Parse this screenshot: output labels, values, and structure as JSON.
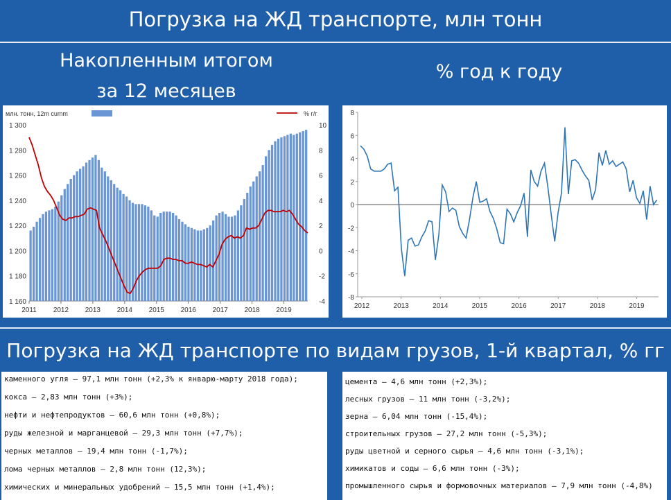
{
  "header": {
    "title": "Погрузка на ЖД транспорте, млн тонн",
    "left_subtitle_line1": "Накопленным итогом",
    "left_subtitle_line2": "за 12 месяцев",
    "right_subtitle": "% год к году",
    "bottom_title": "Погрузка на ЖД транспорте по видам грузов, 1-й квартал, % гг"
  },
  "chart_data": [
    {
      "type": "bar+line",
      "legend_bar": "млн. тонн, 12m cumm",
      "legend_line": "% г/г",
      "legend_placement": "top",
      "colors": {
        "bar": "#6a96d6",
        "line": "#c00000"
      },
      "x_tick_labels": [
        "2011",
        "2012",
        "2013",
        "2014",
        "2015",
        "2016",
        "2017",
        "2018",
        "2019"
      ],
      "y_left_ticks": [
        "1 160",
        "1 180",
        "1 200",
        "1 220",
        "1 240",
        "1 260",
        "1 280",
        "1 300"
      ],
      "y_left_range": [
        1160,
        1300
      ],
      "y_right_ticks": [
        "-4",
        "-2",
        "0",
        "2",
        "4",
        "6",
        "8",
        "10"
      ],
      "y_right_range": [
        -4,
        10
      ],
      "bar_values": [
        1216,
        1219,
        1223,
        1226,
        1229,
        1231,
        1232,
        1233,
        1235,
        1239,
        1244,
        1249,
        1253,
        1257,
        1260,
        1263,
        1265,
        1267,
        1270,
        1272,
        1274,
        1276,
        1272,
        1266,
        1263,
        1259,
        1256,
        1253,
        1250,
        1248,
        1245,
        1243,
        1240,
        1238,
        1237,
        1237,
        1237,
        1236,
        1235,
        1232,
        1228,
        1227,
        1230,
        1231,
        1231,
        1231,
        1230,
        1228,
        1225,
        1223,
        1221,
        1219,
        1218,
        1217,
        1216,
        1216,
        1217,
        1218,
        1220,
        1224,
        1228,
        1230,
        1231,
        1229,
        1227,
        1227,
        1228,
        1232,
        1236,
        1241,
        1246,
        1251,
        1255,
        1259,
        1263,
        1268,
        1275,
        1280,
        1284,
        1287,
        1289,
        1290,
        1291,
        1292,
        1293,
        1292,
        1293,
        1294,
        1295,
        1296
      ],
      "line_values": [
        9,
        8.4,
        7.6,
        6.8,
        5.8,
        5.1,
        4.7,
        4.4,
        4,
        3.4,
        2.8,
        2.5,
        2.4,
        2.6,
        2.6,
        2.7,
        2.7,
        2.8,
        2.9,
        3.3,
        3.4,
        3.3,
        3.2,
        1.8,
        1.3,
        0.8,
        0.2,
        -0.4,
        -1,
        -1.6,
        -2.2,
        -2.8,
        -3.3,
        -3.4,
        -3,
        -2.4,
        -2,
        -1.7,
        -1.5,
        -1.4,
        -1.4,
        -1.4,
        -1.4,
        -1.2,
        -0.7,
        -0.6,
        -0.6,
        -0.7,
        -0.7,
        -0.8,
        -0.8,
        -1,
        -1,
        -0.9,
        -1,
        -1.1,
        -1.1,
        -1.2,
        -1.3,
        -1.1,
        -1.3,
        -0.8,
        -0.3,
        0.5,
        0.9,
        1.1,
        1.2,
        1,
        1.1,
        1,
        1.2,
        1.8,
        1.7,
        1.8,
        1.8,
        2,
        2.5,
        3,
        3.2,
        3.2,
        3.1,
        3.1,
        3.1,
        3.2,
        3.1,
        3.2,
        2.9,
        2.5,
        2.1,
        1.9,
        1.6,
        1.4
      ]
    },
    {
      "type": "line",
      "colors": {
        "line": "#2e75b6"
      },
      "x_tick_labels": [
        "2012",
        "2013",
        "2014",
        "2015",
        "2016",
        "2017",
        "2018",
        "2019"
      ],
      "y_ticks": [
        "8",
        "6",
        "4",
        "2",
        "0",
        "-2",
        "-4",
        "-6",
        "-8"
      ],
      "y_range": [
        -8,
        8
      ],
      "values": [
        5.1,
        4.8,
        4.2,
        3.1,
        2.9,
        2.9,
        2.9,
        3.1,
        3.5,
        3.6,
        1.2,
        1.5,
        -3.8,
        -6.2,
        -3.1,
        -2.9,
        -3.6,
        -3.5,
        -2.8,
        -2.3,
        -1.4,
        -1.5,
        -4.8,
        -2.6,
        1.7,
        1.1,
        -0.6,
        -0.3,
        -0.5,
        -1.9,
        -2.5,
        -2.9,
        -1.3,
        0.6,
        2,
        0.2,
        0.3,
        0.5,
        -0.6,
        -1.2,
        -2.1,
        -3.3,
        -3.4,
        -0.4,
        -0.8,
        -1.5,
        -0.7,
        -0.1,
        1,
        -2.8,
        3,
        2,
        1.6,
        2.9,
        3.6,
        1.5,
        -0.9,
        -3.2,
        -0.7,
        1,
        6.7,
        0.9,
        3.8,
        3.9,
        3.6,
        3,
        2.5,
        2.1,
        0.4,
        1.3,
        4.5,
        3.4,
        4.7,
        3.5,
        3.8,
        3.3,
        3.5,
        3.7,
        3.1,
        1.1,
        2.1,
        0.6,
        0.1,
        1.2,
        -1.3,
        1.6,
        0,
        0.4
      ]
    }
  ],
  "list_left": [
    "каменного угля – 97,1 млн тонн (+2,3% к январю-марту 2018 года);",
    "кокса – 2,83 млн тонн (+3%);",
    "нефти и нефтепродуктов – 60,6 млн тонн (+0,8%);",
    "руды железной и марганцевой – 29,3 млн тонн (+7,7%);",
    "черных металлов – 19,4 млн тонн (-1,7%);",
    "лома черных металлов – 2,8 млн тонн (12,3%);",
    "химических и минеральных удобрений – 15,5 млн тонн (+1,4%);"
  ],
  "list_right": [
    "цемента – 4,6 млн тонн (+2,3%);",
    "лесных грузов – 11 млн тонн (-3,2%);",
    "зерна – 6,04 млн тонн (-15,4%);",
    "строительных грузов – 27,2 млн тонн (-5,3%);",
    "руды цветной и серного сырья – 4,6 млн тонн (-3,1%);",
    "химикатов и соды – 6,6 млн тонн (-3%);",
    "промышленного сырья и формовочных материалов – 7,9 млн тонн (-4,8%)"
  ]
}
